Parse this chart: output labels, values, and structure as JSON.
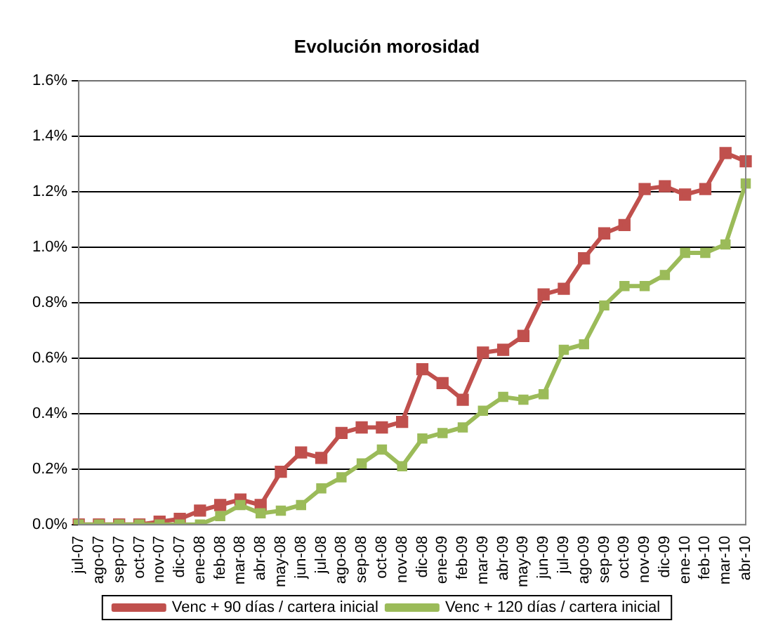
{
  "chart_data": {
    "type": "line",
    "title": "Evolución morosidad",
    "categories": [
      "jul-07",
      "ago-07",
      "sep-07",
      "oct-07",
      "nov-07",
      "dic-07",
      "ene-08",
      "feb-08",
      "mar-08",
      "abr-08",
      "may-08",
      "jun-08",
      "jul-08",
      "ago-08",
      "sep-08",
      "oct-08",
      "nov-08",
      "dic-08",
      "ene-09",
      "feb-09",
      "mar-09",
      "abr-09",
      "may-09",
      "jun-09",
      "jul-09",
      "ago-09",
      "sep-09",
      "oct-09",
      "nov-09",
      "dic-09",
      "ene-10",
      "feb-10",
      "mar-10",
      "abr-10"
    ],
    "series": [
      {
        "name": "Venc + 90 días / cartera inicial",
        "color": "#c0504d",
        "values": [
          0,
          0,
          0,
          0,
          0.01,
          0.02,
          0.05,
          0.07,
          0.09,
          0.07,
          0.19,
          0.26,
          0.24,
          0.33,
          0.35,
          0.35,
          0.37,
          0.56,
          0.51,
          0.45,
          0.62,
          0.63,
          0.68,
          0.83,
          0.85,
          0.96,
          1.05,
          1.08,
          1.21,
          1.22,
          1.19,
          1.21,
          1.34,
          1.31
        ]
      },
      {
        "name": "Venc + 120 días / cartera inicial",
        "color": "#9bbb59",
        "values": [
          0,
          0,
          0,
          0,
          0,
          0,
          0,
          0.03,
          0.07,
          0.04,
          0.05,
          0.07,
          0.13,
          0.17,
          0.22,
          0.27,
          0.21,
          0.31,
          0.33,
          0.35,
          0.41,
          0.46,
          0.45,
          0.47,
          0.63,
          0.65,
          0.79,
          0.86,
          0.86,
          0.9,
          0.98,
          0.98,
          1.01,
          1.23
        ]
      }
    ],
    "ylim": [
      0,
      1.6
    ],
    "yticks": [
      {
        "value": 0,
        "label": "0.0%"
      },
      {
        "value": 0.2,
        "label": "0.2%"
      },
      {
        "value": 0.4,
        "label": "0.4%"
      },
      {
        "value": 0.6,
        "label": "0.6%"
      },
      {
        "value": 0.8,
        "label": "0.8%"
      },
      {
        "value": 1.0,
        "label": "1.0%"
      },
      {
        "value": 1.2,
        "label": "1.2%"
      },
      {
        "value": 1.4,
        "label": "1.4%"
      },
      {
        "value": 1.6,
        "label": "1.6%"
      }
    ],
    "grid": "y",
    "legend": "bottom",
    "marker": "square",
    "line_style": "solid"
  }
}
